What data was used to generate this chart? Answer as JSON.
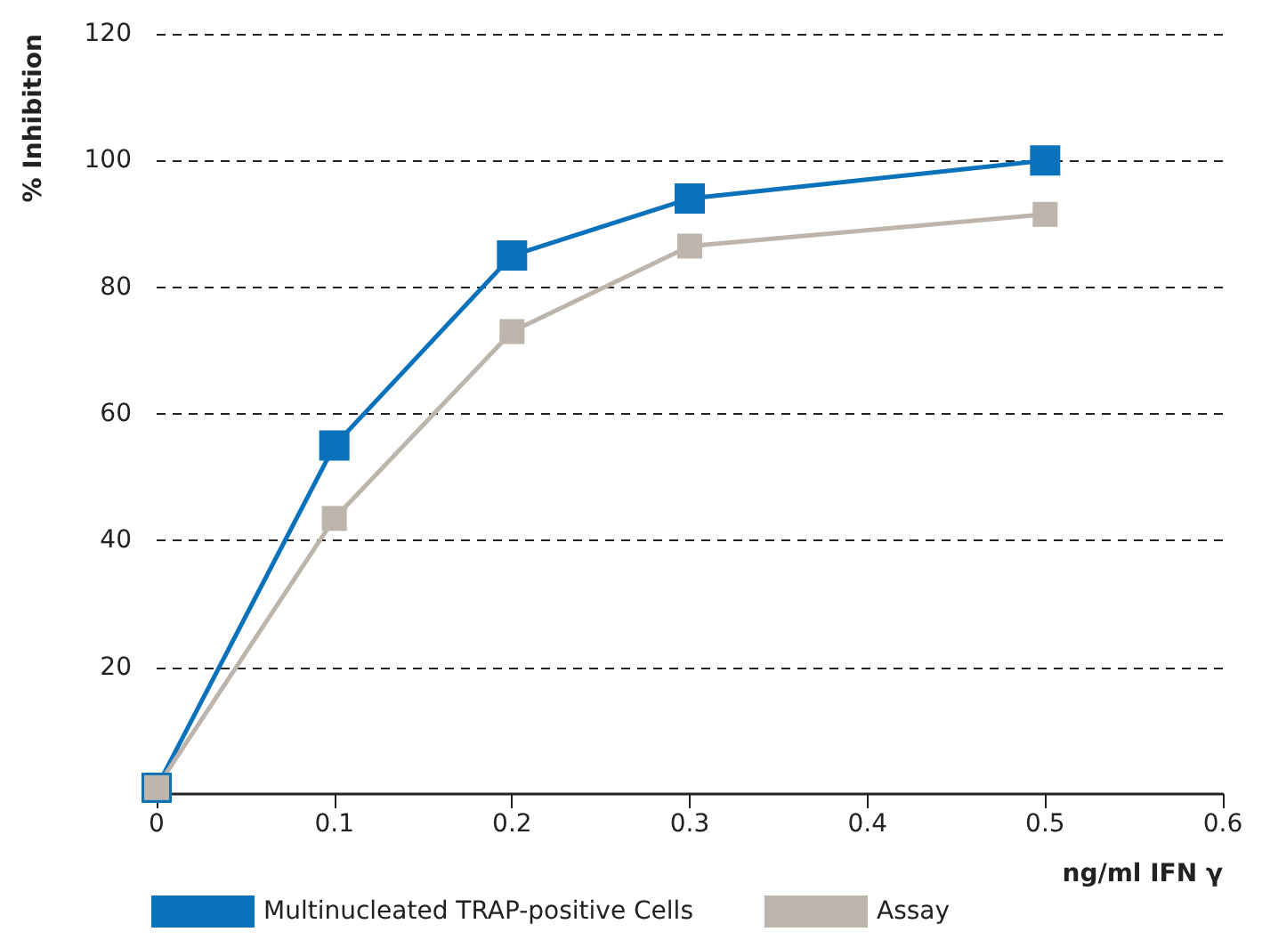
{
  "chart_data": {
    "type": "line",
    "xlabel": "ng/ml IFN γ",
    "ylabel": "% Inhibition",
    "x": [
      0,
      0.1,
      0.2,
      0.3,
      0.5
    ],
    "series": [
      {
        "name": "Multinucleated TRAP-positive Cells",
        "color": "#0a72bb",
        "values": [
          1,
          55,
          85,
          94,
          100
        ]
      },
      {
        "name": "Assay",
        "color": "#bdb5ac",
        "values": [
          1,
          43.5,
          73,
          86.5,
          91.5
        ]
      }
    ],
    "xlim": [
      0,
      0.6
    ],
    "xticks": [
      0,
      0.1,
      0.2,
      0.3,
      0.4,
      0.5,
      0.6
    ],
    "ylim": [
      0,
      120
    ],
    "yticks": [
      20,
      40,
      60,
      80,
      100,
      120
    ],
    "grid": "y",
    "legend": "bottom",
    "marker": "square",
    "line_style": "solid"
  }
}
